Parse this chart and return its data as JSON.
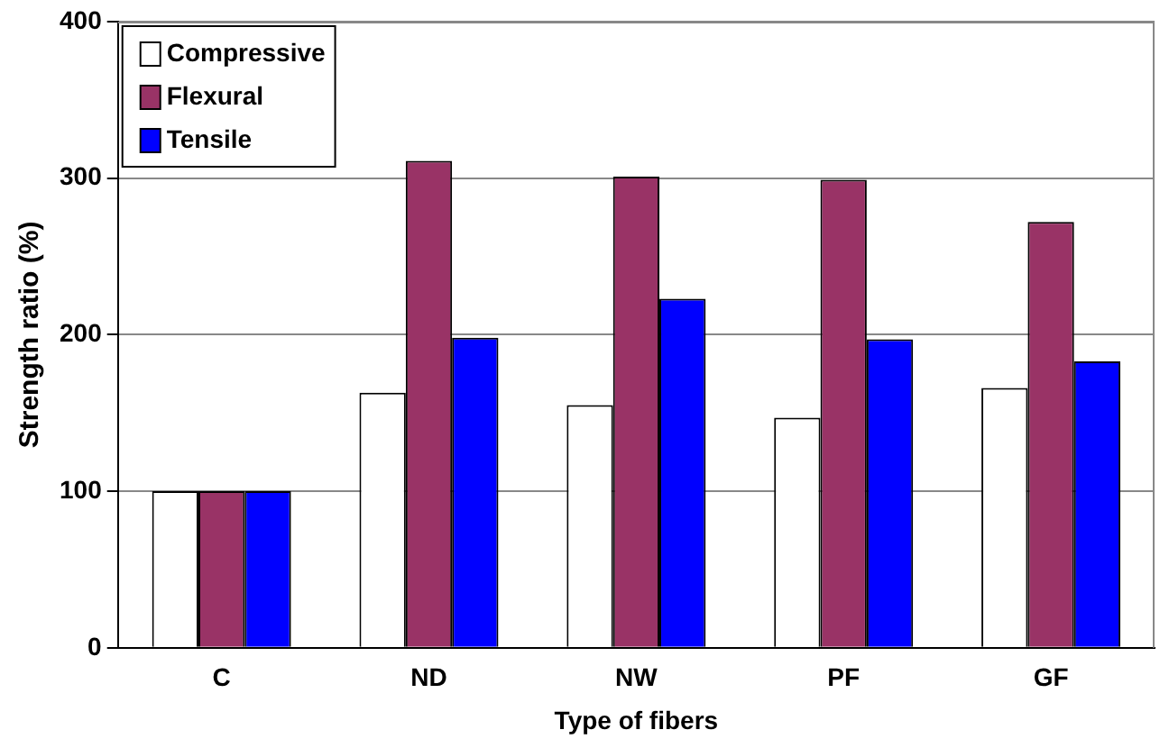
{
  "chart_data": {
    "type": "bar",
    "xlabel": "Type of fibers",
    "ylabel": "Strength ratio (%)",
    "categories": [
      "C",
      "ND",
      "NW",
      "PF",
      "GF"
    ],
    "series": [
      {
        "name": "Compressive",
        "color": "#ffffff",
        "values": [
          100,
          163,
          155,
          147,
          166
        ]
      },
      {
        "name": "Flexural",
        "color": "#993366",
        "values": [
          100,
          311,
          301,
          299,
          272
        ]
      },
      {
        "name": "Tensile",
        "color": "#0000ff",
        "values": [
          100,
          198,
          223,
          197,
          183
        ]
      }
    ],
    "ylim": [
      0,
      400
    ],
    "yticks": [
      0,
      100,
      200,
      300,
      400
    ],
    "grid": "y",
    "legend": "top left"
  }
}
